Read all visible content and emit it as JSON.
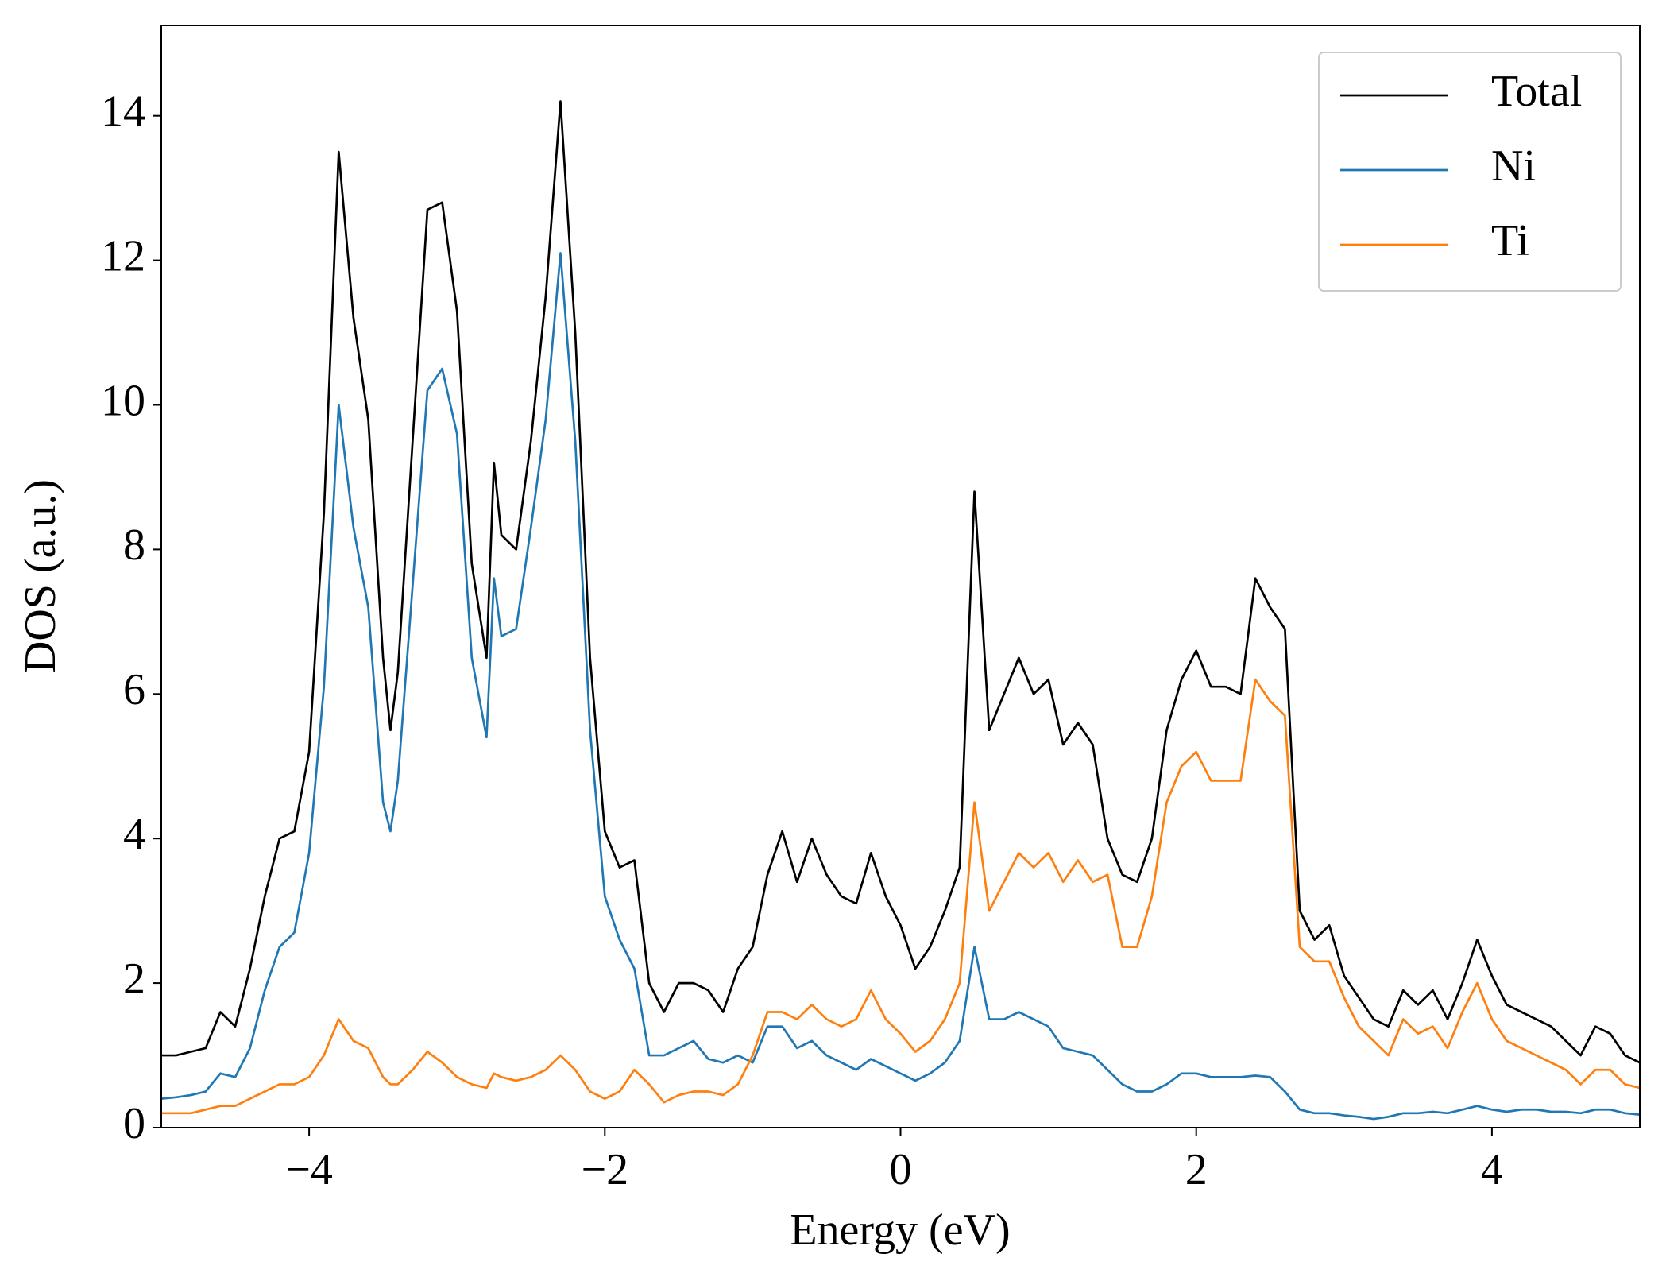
{
  "chart_data": {
    "type": "line",
    "xlabel": "Energy (eV)",
    "ylabel": "DOS (a.u.)",
    "x": [
      -5.0,
      -4.9,
      -4.8,
      -4.7,
      -4.6,
      -4.5,
      -4.4,
      -4.3,
      -4.2,
      -4.1,
      -4.0,
      -3.9,
      -3.8,
      -3.7,
      -3.6,
      -3.5,
      -3.45,
      -3.4,
      -3.3,
      -3.2,
      -3.1,
      -3.0,
      -2.9,
      -2.8,
      -2.75,
      -2.7,
      -2.6,
      -2.5,
      -2.4,
      -2.3,
      -2.2,
      -2.1,
      -2.0,
      -1.9,
      -1.8,
      -1.7,
      -1.6,
      -1.5,
      -1.4,
      -1.3,
      -1.2,
      -1.1,
      -1.0,
      -0.9,
      -0.8,
      -0.7,
      -0.6,
      -0.5,
      -0.4,
      -0.3,
      -0.2,
      -0.1,
      0.0,
      0.1,
      0.2,
      0.3,
      0.4,
      0.5,
      0.6,
      0.7,
      0.8,
      0.9,
      1.0,
      1.1,
      1.2,
      1.3,
      1.4,
      1.5,
      1.6,
      1.7,
      1.8,
      1.9,
      2.0,
      2.1,
      2.2,
      2.3,
      2.4,
      2.5,
      2.6,
      2.7,
      2.8,
      2.9,
      3.0,
      3.1,
      3.2,
      3.3,
      3.4,
      3.5,
      3.6,
      3.7,
      3.8,
      3.9,
      4.0,
      4.1,
      4.2,
      4.3,
      4.4,
      4.5,
      4.6,
      4.7,
      4.8,
      4.9,
      5.0
    ],
    "series": [
      {
        "name": "Total",
        "color": "#000000",
        "values": [
          1.0,
          1.0,
          1.05,
          1.1,
          1.6,
          1.4,
          2.2,
          3.2,
          4.0,
          4.1,
          5.2,
          8.5,
          13.5,
          11.2,
          9.8,
          6.5,
          5.5,
          6.3,
          9.5,
          12.7,
          12.8,
          11.3,
          7.8,
          6.5,
          9.2,
          8.2,
          8.0,
          9.5,
          11.5,
          14.2,
          11.0,
          6.5,
          4.1,
          3.6,
          3.7,
          2.0,
          1.6,
          2.0,
          2.0,
          1.9,
          1.6,
          2.2,
          2.5,
          3.5,
          4.1,
          3.4,
          4.0,
          3.5,
          3.2,
          3.1,
          3.8,
          3.2,
          2.8,
          2.2,
          2.5,
          3.0,
          3.6,
          8.8,
          5.5,
          6.0,
          6.5,
          6.0,
          6.2,
          5.3,
          5.6,
          5.3,
          4.0,
          3.5,
          3.4,
          4.0,
          5.5,
          6.2,
          6.6,
          6.1,
          6.1,
          6.0,
          7.6,
          7.2,
          6.9,
          3.0,
          2.6,
          2.8,
          2.1,
          1.8,
          1.5,
          1.4,
          1.9,
          1.7,
          1.9,
          1.5,
          2.0,
          2.6,
          2.1,
          1.7,
          1.6,
          1.5,
          1.4,
          1.2,
          1.0,
          1.4,
          1.3,
          1.0,
          0.9
        ]
      },
      {
        "name": "Ni",
        "color": "#1f77b4",
        "values": [
          0.4,
          0.42,
          0.45,
          0.5,
          0.75,
          0.7,
          1.1,
          1.9,
          2.5,
          2.7,
          3.8,
          6.1,
          10.0,
          8.3,
          7.2,
          4.5,
          4.1,
          4.8,
          7.5,
          10.2,
          10.5,
          9.6,
          6.5,
          5.4,
          7.6,
          6.8,
          6.9,
          8.3,
          9.8,
          12.1,
          9.5,
          5.5,
          3.2,
          2.6,
          2.2,
          1.0,
          1.0,
          1.1,
          1.2,
          0.95,
          0.9,
          1.0,
          0.9,
          1.4,
          1.4,
          1.1,
          1.2,
          1.0,
          0.9,
          0.8,
          0.95,
          0.85,
          0.75,
          0.65,
          0.75,
          0.9,
          1.2,
          2.5,
          1.5,
          1.5,
          1.6,
          1.5,
          1.4,
          1.1,
          1.05,
          1.0,
          0.8,
          0.6,
          0.5,
          0.5,
          0.6,
          0.75,
          0.75,
          0.7,
          0.7,
          0.7,
          0.72,
          0.7,
          0.5,
          0.25,
          0.2,
          0.2,
          0.17,
          0.15,
          0.12,
          0.15,
          0.2,
          0.2,
          0.22,
          0.2,
          0.25,
          0.3,
          0.25,
          0.22,
          0.25,
          0.25,
          0.22,
          0.22,
          0.2,
          0.25,
          0.25,
          0.2,
          0.18
        ]
      },
      {
        "name": "Ti",
        "color": "#ff7f0e",
        "values": [
          0.2,
          0.2,
          0.2,
          0.25,
          0.3,
          0.3,
          0.4,
          0.5,
          0.6,
          0.6,
          0.7,
          1.0,
          1.5,
          1.2,
          1.1,
          0.7,
          0.6,
          0.6,
          0.8,
          1.05,
          0.9,
          0.7,
          0.6,
          0.55,
          0.75,
          0.7,
          0.65,
          0.7,
          0.8,
          1.0,
          0.8,
          0.5,
          0.4,
          0.5,
          0.8,
          0.6,
          0.35,
          0.45,
          0.5,
          0.5,
          0.45,
          0.6,
          1.0,
          1.6,
          1.6,
          1.5,
          1.7,
          1.5,
          1.4,
          1.5,
          1.9,
          1.5,
          1.3,
          1.05,
          1.2,
          1.5,
          2.0,
          4.5,
          3.0,
          3.4,
          3.8,
          3.6,
          3.8,
          3.4,
          3.7,
          3.4,
          3.5,
          2.5,
          2.5,
          3.2,
          4.5,
          5.0,
          5.2,
          4.8,
          4.8,
          4.8,
          6.2,
          5.9,
          5.7,
          2.5,
          2.3,
          2.3,
          1.8,
          1.4,
          1.2,
          1.0,
          1.5,
          1.3,
          1.4,
          1.1,
          1.6,
          2.0,
          1.5,
          1.2,
          1.1,
          1.0,
          0.9,
          0.8,
          0.6,
          0.8,
          0.8,
          0.6,
          0.55
        ]
      }
    ],
    "xlim": [
      -5,
      5
    ],
    "ylim": [
      0,
      15.25
    ],
    "xticks": [
      {
        "value": -4,
        "label": "−4"
      },
      {
        "value": -2,
        "label": "−2"
      },
      0,
      2,
      4
    ],
    "yticks": [
      0,
      2,
      4,
      6,
      8,
      10,
      12,
      14
    ],
    "legend": "upper right",
    "grid": false
  }
}
